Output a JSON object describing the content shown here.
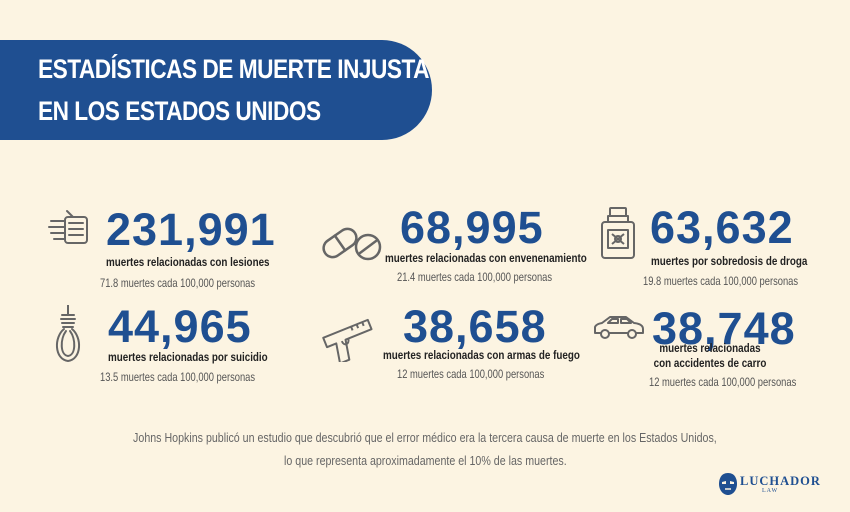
{
  "header": {
    "title_line1": "ESTADÍSTICAS DE MUERTE INJUSTA",
    "title_line2": "EN LOS ESTADOS UNIDOS"
  },
  "colors": {
    "accent": "#1f4f91",
    "background": "#fcf4e2",
    "icon": "#666666"
  },
  "stats": [
    {
      "icon": "bandaged-hand-icon",
      "number": "231,991",
      "label": "muertes relacionadas con lesiones",
      "rate": "71.8 muertes cada 100,000 personas"
    },
    {
      "icon": "pills-icon",
      "number": "68,995",
      "label": "muertes relacionadas con envenenamiento",
      "rate": "21.4 muertes cada 100,000 personas"
    },
    {
      "icon": "poison-bottle-icon",
      "number": "63,632",
      "label": "muertes por sobredosis de droga",
      "rate": "19.8 muertes cada 100,000 personas"
    },
    {
      "icon": "noose-icon",
      "number": "44,965",
      "label": "muertes relacionadas por suicidio",
      "rate": "13.5 muertes cada 100,000 personas"
    },
    {
      "icon": "handgun-icon",
      "number": "38,658",
      "label": "muertes relacionadas con armas de fuego",
      "rate": "12 muertes cada 100,000 personas"
    },
    {
      "icon": "car-icon",
      "number": "38,748",
      "label_line1": "muertes relacionadas",
      "label_line2": "con accidentes de carro",
      "rate": "12 muertes cada 100,000 personas"
    }
  ],
  "footer": {
    "line1": "Johns Hopkins publicó un estudio que descubrió que el error médico era la tercera causa de muerte en los Estados Unidos,",
    "line2": "lo que representa aproximadamente el 10% de las muertes."
  },
  "logo": {
    "name": "LUCHADOR",
    "sub": "LAW",
    "icon": "luchador-mask-icon"
  }
}
